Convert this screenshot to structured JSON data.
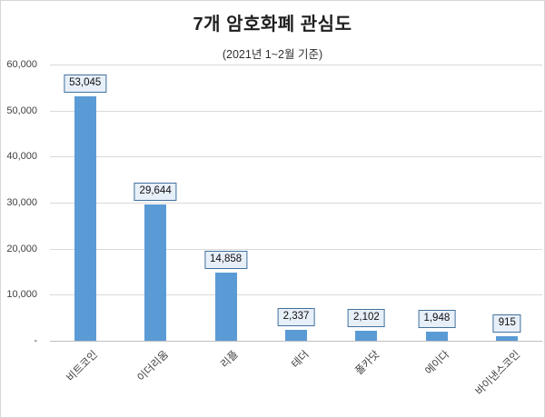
{
  "chart_data": {
    "type": "bar",
    "title": "7개 암호화폐 관심도",
    "subtitle": "(2021년 1~2월 기준)",
    "categories": [
      "비트코인",
      "이더리움",
      "리플",
      "테더",
      "폴카닷",
      "에이다",
      "바이낸스코인"
    ],
    "values": [
      53045,
      29644,
      14858,
      2337,
      2102,
      1948,
      915
    ],
    "value_labels": [
      "53,045",
      "29,644",
      "14,858",
      "2,337",
      "2,102",
      "1,948",
      "915"
    ],
    "xlabel": "",
    "ylabel": "",
    "ylim": [
      0,
      60000
    ],
    "ytick_step": 10000,
    "ytick_labels": [
      "-",
      "10,000",
      "20,000",
      "30,000",
      "40,000",
      "50,000",
      "60,000"
    ],
    "grid": true,
    "legend": "none",
    "bar_color": "#5b9bd5",
    "value_label_fill": "#e7eff8",
    "value_label_border": "#41719c",
    "gridline_color": "#d9d9d9",
    "axis_line_color": "#bfbfbf",
    "text_color": "#404040",
    "title_color": "#1f1f1f",
    "frame_border_color": "#d7d7d7"
  }
}
